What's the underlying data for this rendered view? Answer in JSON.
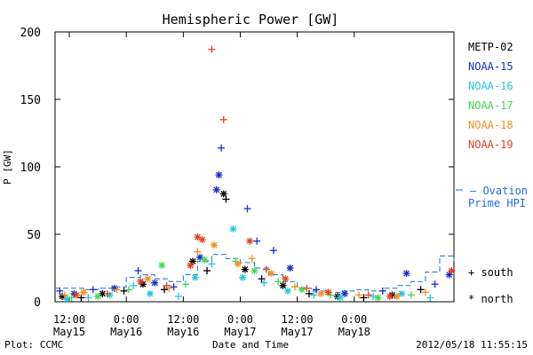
{
  "chart_data": {
    "type": "scatter",
    "title": "Hemispheric Power [GW]",
    "ylabel": "P [GW]",
    "xlabel": "Date and Time",
    "ylim": [
      0,
      200
    ],
    "xlim": [
      "2012-05-15T09:00",
      "2012-05-18T21:00"
    ],
    "x_ticks": [
      {
        "t": "2012-05-15T12:00",
        "line1": "12:00",
        "line2": "May15"
      },
      {
        "t": "2012-05-16T00:00",
        "line1": "0:00",
        "line2": "May16"
      },
      {
        "t": "2012-05-16T12:00",
        "line1": "12:00",
        "line2": "May16"
      },
      {
        "t": "2012-05-17T00:00",
        "line1": "0:00",
        "line2": "May17"
      },
      {
        "t": "2012-05-17T12:00",
        "line1": "12:00",
        "line2": "May17"
      },
      {
        "t": "2012-05-18T00:00",
        "line1": "0:00",
        "line2": "May18"
      }
    ],
    "y_ticks": [
      0,
      50,
      100,
      150,
      200
    ],
    "grid": false,
    "legend_position": "right",
    "series": [
      {
        "name": "METP-02",
        "color": "#000000",
        "points": [
          {
            "t": "2012-05-15T10:30",
            "y": 4,
            "h": "north"
          },
          {
            "t": "2012-05-15T14:30",
            "y": 3,
            "h": "south"
          },
          {
            "t": "2012-05-15T19:00",
            "y": 6,
            "h": "north"
          },
          {
            "t": "2012-05-15T23:30",
            "y": 8,
            "h": "south"
          },
          {
            "t": "2012-05-16T03:30",
            "y": 13,
            "h": "north"
          },
          {
            "t": "2012-05-16T08:00",
            "y": 9,
            "h": "south"
          },
          {
            "t": "2012-05-16T14:00",
            "y": 30,
            "h": "north"
          },
          {
            "t": "2012-05-16T17:00",
            "y": 23,
            "h": "south"
          },
          {
            "t": "2012-05-16T20:30",
            "y": 80,
            "h": "north"
          },
          {
            "t": "2012-05-16T21:00",
            "y": 76,
            "h": "south"
          },
          {
            "t": "2012-05-17T01:00",
            "y": 24,
            "h": "north"
          },
          {
            "t": "2012-05-17T04:30",
            "y": 17,
            "h": "south"
          },
          {
            "t": "2012-05-17T09:00",
            "y": 12,
            "h": "north"
          },
          {
            "t": "2012-05-17T14:30",
            "y": 6,
            "h": "south"
          },
          {
            "t": "2012-05-17T20:30",
            "y": 4,
            "h": "north"
          },
          {
            "t": "2012-05-18T02:00",
            "y": 3,
            "h": "south"
          },
          {
            "t": "2012-05-18T08:00",
            "y": 5,
            "h": "north"
          },
          {
            "t": "2012-05-18T14:00",
            "y": 9,
            "h": "south"
          }
        ]
      },
      {
        "name": "NOAA-15",
        "color": "#1530c4",
        "points": [
          {
            "t": "2012-05-15T10:00",
            "y": 8,
            "h": "south"
          },
          {
            "t": "2012-05-15T13:00",
            "y": 6,
            "h": "north"
          },
          {
            "t": "2012-05-15T17:00",
            "y": 9,
            "h": "south"
          },
          {
            "t": "2012-05-15T21:30",
            "y": 10,
            "h": "north"
          },
          {
            "t": "2012-05-16T02:30",
            "y": 23,
            "h": "south"
          },
          {
            "t": "2012-05-16T06:00",
            "y": 14,
            "h": "north"
          },
          {
            "t": "2012-05-16T10:00",
            "y": 11,
            "h": "south"
          },
          {
            "t": "2012-05-16T15:30",
            "y": 33,
            "h": "north"
          },
          {
            "t": "2012-05-16T19:00",
            "y": 83,
            "h": "north"
          },
          {
            "t": "2012-05-16T19:30",
            "y": 94,
            "h": "north"
          },
          {
            "t": "2012-05-16T20:00",
            "y": 114,
            "h": "south"
          },
          {
            "t": "2012-05-17T01:30",
            "y": 69,
            "h": "south"
          },
          {
            "t": "2012-05-17T03:30",
            "y": 45,
            "h": "south"
          },
          {
            "t": "2012-05-17T07:00",
            "y": 38,
            "h": "south"
          },
          {
            "t": "2012-05-17T10:30",
            "y": 25,
            "h": "north"
          },
          {
            "t": "2012-05-17T16:00",
            "y": 9,
            "h": "south"
          },
          {
            "t": "2012-05-17T22:00",
            "y": 6,
            "h": "north"
          },
          {
            "t": "2012-05-18T06:00",
            "y": 8,
            "h": "south"
          },
          {
            "t": "2012-05-18T11:00",
            "y": 21,
            "h": "north"
          },
          {
            "t": "2012-05-18T17:00",
            "y": 13,
            "h": "south"
          },
          {
            "t": "2012-05-18T20:00",
            "y": 20,
            "h": "north"
          }
        ]
      },
      {
        "name": "NOAA-16",
        "color": "#22c8d8",
        "points": [
          {
            "t": "2012-05-15T11:30",
            "y": 2,
            "h": "north"
          },
          {
            "t": "2012-05-15T16:00",
            "y": 3,
            "h": "south"
          },
          {
            "t": "2012-05-15T20:30",
            "y": 5,
            "h": "north"
          },
          {
            "t": "2012-05-16T01:30",
            "y": 12,
            "h": "south"
          },
          {
            "t": "2012-05-16T05:00",
            "y": 6,
            "h": "north"
          },
          {
            "t": "2012-05-16T11:00",
            "y": 4,
            "h": "south"
          },
          {
            "t": "2012-05-16T14:30",
            "y": 18,
            "h": "north"
          },
          {
            "t": "2012-05-16T18:00",
            "y": 28,
            "h": "south"
          },
          {
            "t": "2012-05-16T22:30",
            "y": 54,
            "h": "north"
          },
          {
            "t": "2012-05-17T00:30",
            "y": 18,
            "h": "north"
          },
          {
            "t": "2012-05-17T05:00",
            "y": 14,
            "h": "south"
          },
          {
            "t": "2012-05-17T10:00",
            "y": 8,
            "h": "north"
          },
          {
            "t": "2012-05-17T15:30",
            "y": 5,
            "h": "south"
          },
          {
            "t": "2012-05-17T21:00",
            "y": 3,
            "h": "north"
          },
          {
            "t": "2012-05-18T04:00",
            "y": 4,
            "h": "south"
          },
          {
            "t": "2012-05-18T10:00",
            "y": 6,
            "h": "north"
          },
          {
            "t": "2012-05-18T16:00",
            "y": 3,
            "h": "south"
          }
        ]
      },
      {
        "name": "NOAA-17",
        "color": "#40d850",
        "points": [
          {
            "t": "2012-05-15T12:30",
            "y": 3,
            "h": "south"
          },
          {
            "t": "2012-05-15T18:00",
            "y": 4,
            "h": "north"
          },
          {
            "t": "2012-05-16T00:30",
            "y": 9,
            "h": "south"
          },
          {
            "t": "2012-05-16T07:30",
            "y": 27,
            "h": "north"
          },
          {
            "t": "2012-05-16T12:30",
            "y": 13,
            "h": "south"
          },
          {
            "t": "2012-05-16T16:30",
            "y": 31,
            "h": "north"
          },
          {
            "t": "2012-05-16T23:00",
            "y": 30,
            "h": "south"
          },
          {
            "t": "2012-05-17T03:00",
            "y": 23,
            "h": "north"
          },
          {
            "t": "2012-05-17T08:00",
            "y": 15,
            "h": "south"
          },
          {
            "t": "2012-05-17T13:00",
            "y": 9,
            "h": "north"
          },
          {
            "t": "2012-05-17T19:00",
            "y": 5,
            "h": "south"
          },
          {
            "t": "2012-05-18T05:00",
            "y": 3,
            "h": "north"
          },
          {
            "t": "2012-05-18T12:00",
            "y": 5,
            "h": "south"
          }
        ]
      },
      {
        "name": "NOAA-18",
        "color": "#f0901e",
        "points": [
          {
            "t": "2012-05-15T11:00",
            "y": 5,
            "h": "south"
          },
          {
            "t": "2012-05-15T15:00",
            "y": 7,
            "h": "north"
          },
          {
            "t": "2012-05-15T22:00",
            "y": 9,
            "h": "south"
          },
          {
            "t": "2012-05-16T04:30",
            "y": 17,
            "h": "north"
          },
          {
            "t": "2012-05-16T09:00",
            "y": 10,
            "h": "south"
          },
          {
            "t": "2012-05-16T15:00",
            "y": 37,
            "h": "south"
          },
          {
            "t": "2012-05-16T18:30",
            "y": 42,
            "h": "north"
          },
          {
            "t": "2012-05-16T23:30",
            "y": 28,
            "h": "north"
          },
          {
            "t": "2012-05-17T02:30",
            "y": 32,
            "h": "south"
          },
          {
            "t": "2012-05-17T06:30",
            "y": 21,
            "h": "north"
          },
          {
            "t": "2012-05-17T11:30",
            "y": 11,
            "h": "south"
          },
          {
            "t": "2012-05-17T17:00",
            "y": 6,
            "h": "north"
          },
          {
            "t": "2012-05-18T01:00",
            "y": 5,
            "h": "south"
          },
          {
            "t": "2012-05-18T09:00",
            "y": 4,
            "h": "north"
          },
          {
            "t": "2012-05-18T15:00",
            "y": 7,
            "h": "south"
          }
        ]
      },
      {
        "name": "NOAA-19",
        "color": "#e04020",
        "points": [
          {
            "t": "2012-05-15T13:30",
            "y": 5,
            "h": "north"
          },
          {
            "t": "2012-05-15T20:00",
            "y": 6,
            "h": "south"
          },
          {
            "t": "2012-05-16T03:00",
            "y": 15,
            "h": "north"
          },
          {
            "t": "2012-05-16T08:30",
            "y": 12,
            "h": "south"
          },
          {
            "t": "2012-05-16T13:30",
            "y": 27,
            "h": "north"
          },
          {
            "t": "2012-05-16T15:00",
            "y": 48,
            "h": "north"
          },
          {
            "t": "2012-05-16T16:00",
            "y": 46,
            "h": "north"
          },
          {
            "t": "2012-05-16T18:00",
            "y": 187,
            "h": "south"
          },
          {
            "t": "2012-05-16T20:30",
            "y": 135,
            "h": "south"
          },
          {
            "t": "2012-05-17T02:00",
            "y": 45,
            "h": "north"
          },
          {
            "t": "2012-05-17T05:30",
            "y": 24,
            "h": "south"
          },
          {
            "t": "2012-05-17T09:30",
            "y": 17,
            "h": "north"
          },
          {
            "t": "2012-05-17T14:00",
            "y": 10,
            "h": "south"
          },
          {
            "t": "2012-05-17T18:30",
            "y": 7,
            "h": "north"
          },
          {
            "t": "2012-05-18T03:00",
            "y": 5,
            "h": "south"
          },
          {
            "t": "2012-05-18T07:30",
            "y": 4,
            "h": "north"
          },
          {
            "t": "2012-05-18T20:30",
            "y": 23,
            "h": "north"
          }
        ]
      }
    ],
    "ovation": {
      "name": "– Ovation Prime HPI",
      "color": "#1e6ed8",
      "points": [
        {
          "t": "2012-05-15T09:00",
          "y": 10
        },
        {
          "t": "2012-05-15T12:00",
          "y": 10
        },
        {
          "t": "2012-05-15T15:00",
          "y": 9
        },
        {
          "t": "2012-05-15T18:00",
          "y": 10
        },
        {
          "t": "2012-05-15T21:00",
          "y": 11
        },
        {
          "t": "2012-05-16T00:00",
          "y": 18
        },
        {
          "t": "2012-05-16T03:00",
          "y": 20
        },
        {
          "t": "2012-05-16T06:00",
          "y": 17
        },
        {
          "t": "2012-05-16T09:00",
          "y": 15
        },
        {
          "t": "2012-05-16T12:00",
          "y": 20
        },
        {
          "t": "2012-05-16T15:00",
          "y": 30
        },
        {
          "t": "2012-05-16T18:00",
          "y": 35
        },
        {
          "t": "2012-05-16T21:00",
          "y": 32
        },
        {
          "t": "2012-05-17T00:00",
          "y": 29
        },
        {
          "t": "2012-05-17T03:00",
          "y": 25
        },
        {
          "t": "2012-05-17T06:00",
          "y": 20
        },
        {
          "t": "2012-05-17T09:00",
          "y": 15
        },
        {
          "t": "2012-05-17T12:00",
          "y": 10
        },
        {
          "t": "2012-05-17T15:00",
          "y": 8
        },
        {
          "t": "2012-05-17T18:00",
          "y": 7
        },
        {
          "t": "2012-05-17T21:00",
          "y": 8
        },
        {
          "t": "2012-05-18T00:00",
          "y": 9
        },
        {
          "t": "2012-05-18T03:00",
          "y": 8
        },
        {
          "t": "2012-05-18T06:00",
          "y": 10
        },
        {
          "t": "2012-05-18T09:00",
          "y": 12
        },
        {
          "t": "2012-05-18T12:00",
          "y": 15
        },
        {
          "t": "2012-05-18T15:00",
          "y": 22
        },
        {
          "t": "2012-05-18T18:00",
          "y": 34
        },
        {
          "t": "2012-05-18T21:00",
          "y": 30
        }
      ]
    },
    "marker_legend": [
      {
        "symbol": "+",
        "label": "south"
      },
      {
        "symbol": "*",
        "label": "north"
      }
    ]
  },
  "footer": {
    "left": "Plot: CCMC",
    "right": "2012/05/18 11:55:15"
  }
}
